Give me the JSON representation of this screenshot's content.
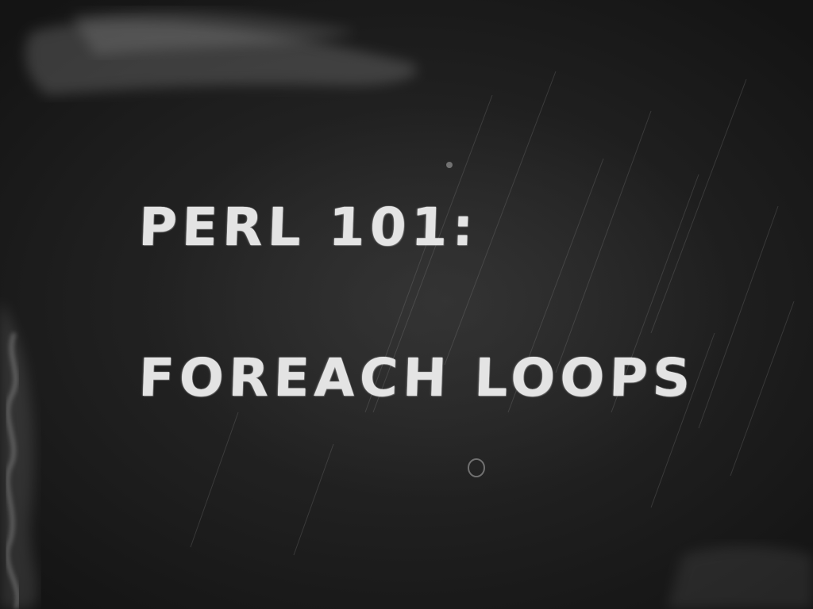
{
  "slide": {
    "title_line_1": "PERL 101:",
    "title_line_2": "FOREACH LOOPS"
  },
  "colors": {
    "board": "#1f1f1f",
    "chalk": "#f2f2f2"
  }
}
